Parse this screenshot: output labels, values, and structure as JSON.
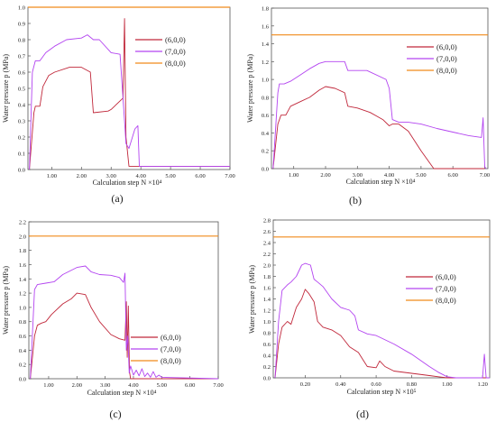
{
  "figure": {
    "legend_labels": [
      "(6,0,0)",
      "(7,0,0)",
      "(8,0,0)"
    ],
    "colors": {
      "s600": "#c0273a",
      "s700": "#b344f0",
      "s800": "#f08a1a"
    }
  },
  "chart_data": [
    {
      "type": "line",
      "panel_label": "(a)",
      "xlabel": "Calculation step N ×10⁴",
      "ylabel": "Water pressure p (MPa)",
      "xlim": [
        0.2,
        7.0
      ],
      "ylim": [
        0,
        1.0
      ],
      "xticks": [
        "1.00",
        "2.00",
        "3.00",
        "4.00",
        "5.00",
        "6.00",
        "7.00"
      ],
      "xtick_values": [
        1,
        2,
        3,
        4,
        5,
        6,
        7
      ],
      "yticks": [
        "0.0",
        "0.1",
        "0.2",
        "0.3",
        "0.4",
        "0.5",
        "0.6",
        "0.7",
        "0.8",
        "0.9",
        "1.0"
      ],
      "ytick_values": [
        0,
        0.1,
        0.2,
        0.3,
        0.4,
        0.5,
        0.6,
        0.7,
        0.8,
        0.9,
        1.0
      ],
      "legend_position": "top-right",
      "series": [
        {
          "name": "(6,0,0)",
          "color": "#c0273a",
          "x": [
            0.25,
            0.4,
            0.45,
            0.6,
            0.7,
            0.9,
            1.1,
            1.6,
            2.0,
            2.3,
            2.4,
            2.9,
            3.0,
            3.4,
            3.45,
            3.5,
            3.6,
            3.9,
            7.0
          ],
          "y": [
            0.0,
            0.35,
            0.39,
            0.39,
            0.51,
            0.58,
            0.6,
            0.63,
            0.63,
            0.6,
            0.35,
            0.36,
            0.37,
            0.44,
            0.93,
            0.2,
            0.02,
            0.02,
            0.02
          ]
        },
        {
          "name": "(7,0,0)",
          "color": "#b344f0",
          "x": [
            0.25,
            0.35,
            0.45,
            0.6,
            0.8,
            1.1,
            1.5,
            2.0,
            2.2,
            2.4,
            2.6,
            3.0,
            3.3,
            3.45,
            3.5,
            3.6,
            3.8,
            3.9,
            3.95,
            7.0
          ],
          "y": [
            0.0,
            0.6,
            0.67,
            0.67,
            0.72,
            0.76,
            0.8,
            0.81,
            0.83,
            0.8,
            0.8,
            0.72,
            0.71,
            0.3,
            0.16,
            0.13,
            0.25,
            0.27,
            0.02,
            0.02
          ]
        },
        {
          "name": "(8,0,0)",
          "color": "#f08a1a",
          "x": [
            0.2,
            7.0
          ],
          "y": [
            1.0,
            1.0
          ]
        }
      ]
    },
    {
      "type": "line",
      "panel_label": "(b)",
      "xlabel": "Calculation step N ×10⁴",
      "ylabel": "Water pressure p (MPa)",
      "xlim": [
        0.3,
        7.1
      ],
      "ylim": [
        0,
        1.8
      ],
      "xticks": [
        "1.00",
        "2.00",
        "3.00",
        "4.00",
        "5.00",
        "6.00",
        "7.00"
      ],
      "xtick_values": [
        1,
        2,
        3,
        4,
        5,
        6,
        7
      ],
      "yticks": [
        "0.0",
        "0.2",
        "0.4",
        "0.6",
        "0.8",
        "1.0",
        "1.2",
        "1.4",
        "1.6",
        "1.8"
      ],
      "ytick_values": [
        0,
        0.2,
        0.4,
        0.6,
        0.8,
        1.0,
        1.2,
        1.4,
        1.6,
        1.8
      ],
      "legend_position": "right",
      "series": [
        {
          "name": "(6,0,0)",
          "color": "#c0273a",
          "x": [
            0.35,
            0.5,
            0.6,
            0.75,
            0.9,
            1.2,
            1.5,
            1.8,
            2.0,
            2.3,
            2.6,
            2.7,
            3.0,
            3.4,
            3.8,
            4.0,
            4.1,
            4.3,
            4.6,
            5.0,
            5.4,
            7.0
          ],
          "y": [
            0.0,
            0.5,
            0.6,
            0.6,
            0.7,
            0.75,
            0.8,
            0.88,
            0.92,
            0.9,
            0.85,
            0.7,
            0.68,
            0.63,
            0.55,
            0.48,
            0.5,
            0.5,
            0.42,
            0.2,
            0.0,
            0.0
          ]
        },
        {
          "name": "(7,0,0)",
          "color": "#b344f0",
          "x": [
            0.35,
            0.5,
            0.55,
            0.7,
            0.9,
            1.2,
            1.5,
            1.8,
            2.0,
            2.6,
            2.7,
            3.3,
            3.9,
            4.0,
            4.1,
            4.3,
            4.6,
            5.0,
            5.5,
            6.0,
            6.5,
            6.9,
            6.95,
            7.0,
            7.05
          ],
          "y": [
            0.0,
            0.85,
            0.95,
            0.95,
            0.98,
            1.05,
            1.12,
            1.18,
            1.2,
            1.2,
            1.1,
            1.1,
            1.0,
            0.9,
            0.55,
            0.52,
            0.52,
            0.5,
            0.45,
            0.41,
            0.37,
            0.35,
            0.57,
            0.02,
            0.0
          ]
        },
        {
          "name": "(8,0,0)",
          "color": "#f08a1a",
          "x": [
            0.3,
            7.1
          ],
          "y": [
            1.5,
            1.5
          ]
        }
      ]
    },
    {
      "type": "line",
      "panel_label": "(c)",
      "xlabel": "Calculation step N ×10⁴",
      "ylabel": "Water pressure p (MPa)",
      "xlim": [
        0.3,
        7.0
      ],
      "ylim": [
        0,
        2.2
      ],
      "xticks": [
        "1.00",
        "2.00",
        "3.00",
        "4.00",
        "5.00",
        "6.00",
        "7.00"
      ],
      "xtick_values": [
        1,
        2,
        3,
        4,
        5,
        6,
        7
      ],
      "yticks": [
        "0.0",
        "0.2",
        "0.4",
        "0.6",
        "0.8",
        "1.0",
        "1.2",
        "1.4",
        "1.6",
        "1.8",
        "2.0",
        "2.2"
      ],
      "ytick_values": [
        0,
        0.2,
        0.4,
        0.6,
        0.8,
        1.0,
        1.2,
        1.4,
        1.6,
        1.8,
        2.0,
        2.2
      ],
      "legend_position": "right",
      "series": [
        {
          "name": "(6,0,0)",
          "color": "#c0273a",
          "x": [
            0.35,
            0.5,
            0.6,
            0.75,
            0.9,
            1.1,
            1.5,
            1.8,
            2.0,
            2.3,
            2.5,
            2.8,
            3.2,
            3.5,
            3.7,
            3.75,
            3.78,
            3.82,
            3.86,
            3.9,
            4.0,
            7.0
          ],
          "y": [
            0.0,
            0.6,
            0.75,
            0.78,
            0.8,
            0.9,
            1.05,
            1.12,
            1.2,
            1.18,
            1.0,
            0.8,
            0.62,
            0.56,
            0.54,
            1.08,
            0.3,
            1.02,
            0.1,
            0.0,
            0.0,
            0.0
          ]
        },
        {
          "name": "(7,0,0)",
          "color": "#b344f0",
          "x": [
            0.35,
            0.5,
            0.6,
            0.9,
            1.2,
            1.5,
            2.0,
            2.3,
            2.5,
            2.8,
            3.2,
            3.5,
            3.65,
            3.7,
            3.75,
            3.8,
            3.85,
            3.9,
            4.0,
            4.1,
            4.2,
            4.3,
            4.4,
            4.5,
            4.6,
            4.7,
            4.8,
            4.9,
            5.0,
            7.0
          ],
          "y": [
            0.0,
            1.25,
            1.32,
            1.34,
            1.36,
            1.46,
            1.56,
            1.58,
            1.5,
            1.46,
            1.45,
            1.42,
            1.35,
            1.48,
            0.4,
            0.6,
            0.08,
            0.18,
            0.05,
            0.12,
            0.04,
            0.14,
            0.03,
            0.08,
            0.02,
            0.1,
            0.02,
            0.05,
            0.02,
            0.0
          ]
        },
        {
          "name": "(8,0,0)",
          "color": "#f08a1a",
          "x": [
            0.3,
            7.0
          ],
          "y": [
            2.0,
            2.0
          ]
        }
      ]
    },
    {
      "type": "line",
      "panel_label": "(d)",
      "xlabel": "Calculation step N ×10⁵",
      "ylabel": "Water pressure p (MPa)",
      "xlim": [
        0.02,
        1.24
      ],
      "ylim": [
        0,
        2.8
      ],
      "xticks": [
        "0.20",
        "0.40",
        "0.60",
        "0.80",
        "1.00",
        "1.20"
      ],
      "xtick_values": [
        0.2,
        0.4,
        0.6,
        0.8,
        1.0,
        1.2
      ],
      "yticks": [
        "0.0",
        "0.2",
        "0.4",
        "0.6",
        "0.8",
        "1.0",
        "1.2",
        "1.4",
        "1.6",
        "1.8",
        "2.0",
        "2.2",
        "2.4",
        "2.6",
        "2.8"
      ],
      "ytick_values": [
        0,
        0.2,
        0.4,
        0.6,
        0.8,
        1.0,
        1.2,
        1.4,
        1.6,
        1.8,
        2.0,
        2.2,
        2.4,
        2.6,
        2.8
      ],
      "legend_position": "top-right",
      "series": [
        {
          "name": "(6,0,0)",
          "color": "#c0273a",
          "x": [
            0.03,
            0.05,
            0.07,
            0.1,
            0.12,
            0.15,
            0.18,
            0.2,
            0.22,
            0.25,
            0.27,
            0.3,
            0.35,
            0.4,
            0.45,
            0.5,
            0.53,
            0.55,
            0.6,
            0.62,
            0.65,
            0.7,
            0.8,
            0.9,
            0.95,
            1.0,
            1.24
          ],
          "y": [
            0.0,
            0.6,
            0.9,
            1.0,
            0.95,
            1.25,
            1.4,
            1.57,
            1.5,
            1.35,
            1.0,
            0.9,
            0.85,
            0.75,
            0.55,
            0.45,
            0.3,
            0.2,
            0.18,
            0.3,
            0.2,
            0.12,
            0.08,
            0.04,
            0.02,
            0.0,
            0.0
          ]
        },
        {
          "name": "(7,0,0)",
          "color": "#b344f0",
          "x": [
            0.03,
            0.05,
            0.07,
            0.1,
            0.12,
            0.15,
            0.18,
            0.2,
            0.23,
            0.25,
            0.27,
            0.3,
            0.35,
            0.4,
            0.45,
            0.48,
            0.5,
            0.55,
            0.6,
            0.7,
            0.8,
            0.9,
            0.95,
            1.0,
            1.05,
            1.1,
            1.2,
            1.21,
            1.22,
            1.24
          ],
          "y": [
            0.0,
            1.0,
            1.55,
            1.65,
            1.7,
            1.8,
            2.0,
            2.03,
            2.0,
            1.75,
            1.7,
            1.62,
            1.4,
            1.25,
            1.2,
            1.1,
            0.85,
            0.78,
            0.75,
            0.6,
            0.42,
            0.2,
            0.1,
            0.02,
            0.0,
            0.0,
            0.0,
            0.42,
            0.0,
            0.0
          ]
        },
        {
          "name": "(8,0,0)",
          "color": "#f08a1a",
          "x": [
            0.02,
            1.24
          ],
          "y": [
            2.5,
            2.5
          ]
        }
      ]
    }
  ]
}
